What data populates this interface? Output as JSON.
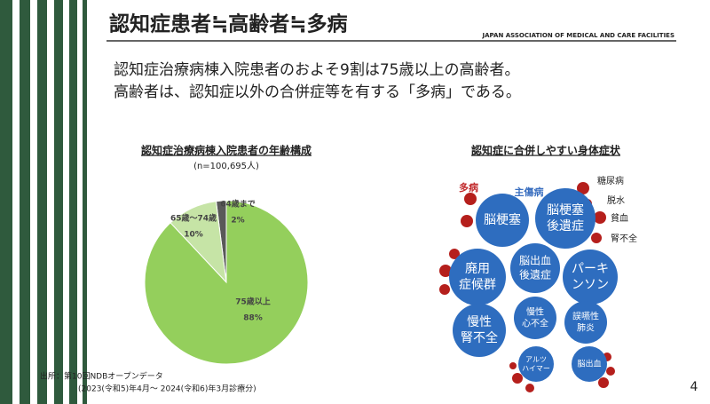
{
  "header": {
    "title": "認知症患者≒高齢者≒多病",
    "organization": "JAPAN ASSOCIATION OF MEDICAL AND CARE FACILITIES"
  },
  "bullets": [
    "認知症治療病棟入院患者のおよそ9割は75歳以上の高齢者。",
    "高齢者は、認知症以外の合併症等を有する「多病」である。"
  ],
  "chart_data": {
    "type": "pie",
    "title": "認知症治療病棟入院患者の年齢構成",
    "subtitle": "(n=100,695人)",
    "categories": [
      "64歳まで",
      "65歳～74歳",
      "75歳以上"
    ],
    "values": [
      2,
      10,
      88
    ],
    "value_labels": [
      "2%",
      "10%",
      "88%"
    ],
    "colors": [
      "#595959",
      "#c6e4a6",
      "#94cf5c"
    ]
  },
  "diagram": {
    "title": "認知症に合併しやすい身体症状",
    "legend_many": "多病",
    "legend_main": "主傷病",
    "side_labels": [
      "糖尿病",
      "脱水",
      "貧血",
      "腎不全"
    ],
    "bubbles": [
      [
        "脳梗塞"
      ],
      [
        "脳梗塞",
        "後遺症"
      ],
      [
        "廃用",
        "症候群"
      ],
      [
        "脳出血",
        "後遺症"
      ],
      [
        "パーキ",
        "ンソン"
      ],
      [
        "慢性",
        "腎不全"
      ],
      [
        "慢性",
        "心不全"
      ],
      [
        "誤嚥性",
        "肺炎"
      ],
      [
        "アルツ",
        "ハイマー"
      ],
      [
        "脳出血"
      ]
    ]
  },
  "footer": {
    "source": "出所：第10回NDBオープンデータ",
    "period": "(2023(令和5)年4月～ 2024(令和6)年3月診療分)",
    "page": "4"
  }
}
